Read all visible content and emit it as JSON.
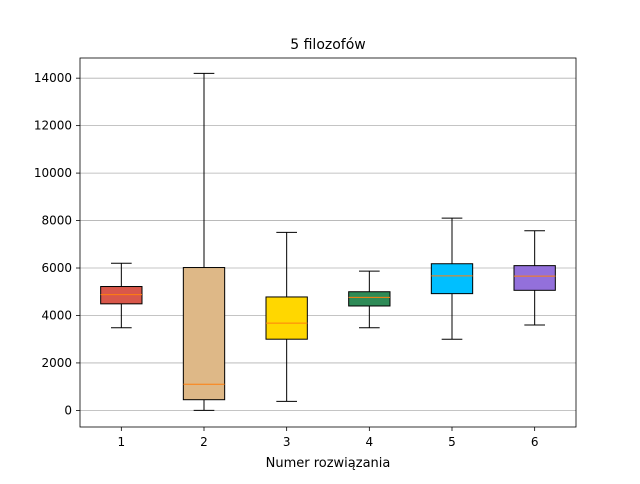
{
  "chart_data": {
    "type": "box",
    "title": "5 filozofów",
    "xlabel": "Numer rozwiązania",
    "ylabel": "",
    "categories": [
      "1",
      "2",
      "3",
      "4",
      "5",
      "6"
    ],
    "ylim": [
      -700,
      14850
    ],
    "yticks": [
      0,
      2000,
      4000,
      6000,
      8000,
      10000,
      12000,
      14000
    ],
    "ytick_labels": [
      "0",
      "2000",
      "4000",
      "6000",
      "8000",
      "10000",
      "12000",
      "14000"
    ],
    "grid": "y",
    "median_color": "#ff7f0e",
    "boxes": [
      {
        "label": "1",
        "color": "#d9574a",
        "whisker_low": 3480,
        "q1": 4490,
        "median": 4880,
        "q3": 5220,
        "whisker_high": 6200
      },
      {
        "label": "2",
        "color": "#deb887",
        "whisker_low": 0,
        "q1": 450,
        "median": 1100,
        "q3": 6020,
        "whisker_high": 14200
      },
      {
        "label": "3",
        "color": "#ffd700",
        "whisker_low": 380,
        "q1": 3000,
        "median": 3680,
        "q3": 4780,
        "whisker_high": 7500
      },
      {
        "label": "4",
        "color": "#2e8b57",
        "whisker_low": 3480,
        "q1": 4400,
        "median": 4760,
        "q3": 5000,
        "whisker_high": 5870
      },
      {
        "label": "5",
        "color": "#00bfff",
        "whisker_low": 3000,
        "q1": 4920,
        "median": 5670,
        "q3": 6180,
        "whisker_high": 8100
      },
      {
        "label": "6",
        "color": "#9370db",
        "whisker_low": 3600,
        "q1": 5060,
        "median": 5660,
        "q3": 6100,
        "whisker_high": 7570
      }
    ]
  }
}
